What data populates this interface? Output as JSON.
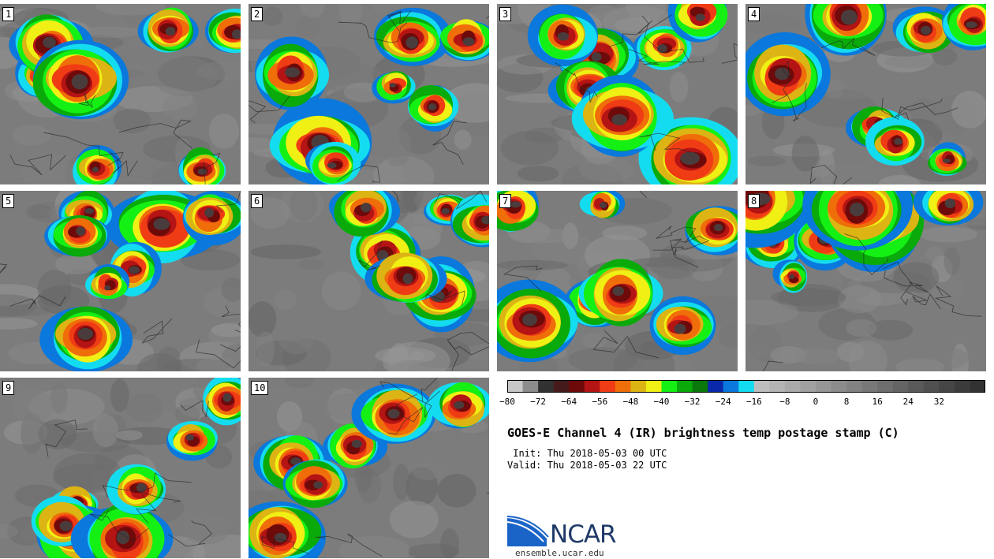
{
  "panels": [
    "1",
    "2",
    "3",
    "4",
    "5",
    "6",
    "7",
    "8",
    "9",
    "10"
  ],
  "colorbar": {
    "colors": [
      "#c8c8c8",
      "#8c8c8c",
      "#323232",
      "#461a1a",
      "#6e0a0a",
      "#b41414",
      "#f03c14",
      "#f06e0a",
      "#dcb414",
      "#f0f014",
      "#14f014",
      "#0aaa0a",
      "#0a780a",
      "#0a28aa",
      "#0a78dc",
      "#14dcf0",
      "#bebebe",
      "#b4b4b4",
      "#aaaaaa",
      "#a0a0a0",
      "#969696",
      "#8c8c8c",
      "#828282",
      "#787878",
      "#6e6e6e",
      "#646464",
      "#5a5a5a",
      "#505050",
      "#464646",
      "#3c3c3c",
      "#323232"
    ],
    "tick_labels": [
      "−80",
      "−72",
      "−64",
      "−56",
      "−48",
      "−40",
      "−32",
      "−24",
      "−16",
      "−8",
      "0",
      "8",
      "16",
      "24",
      "32"
    ]
  },
  "title": "GOES-E Channel 4 (IR) brightness temp postage stamp (C)",
  "init": " Init: Thu 2018-05-03 00 UTC",
  "valid": "Valid: Thu 2018-05-03 22 UTC",
  "logo": {
    "name": "NCAR",
    "url": "ensemble.ucar.edu"
  }
}
